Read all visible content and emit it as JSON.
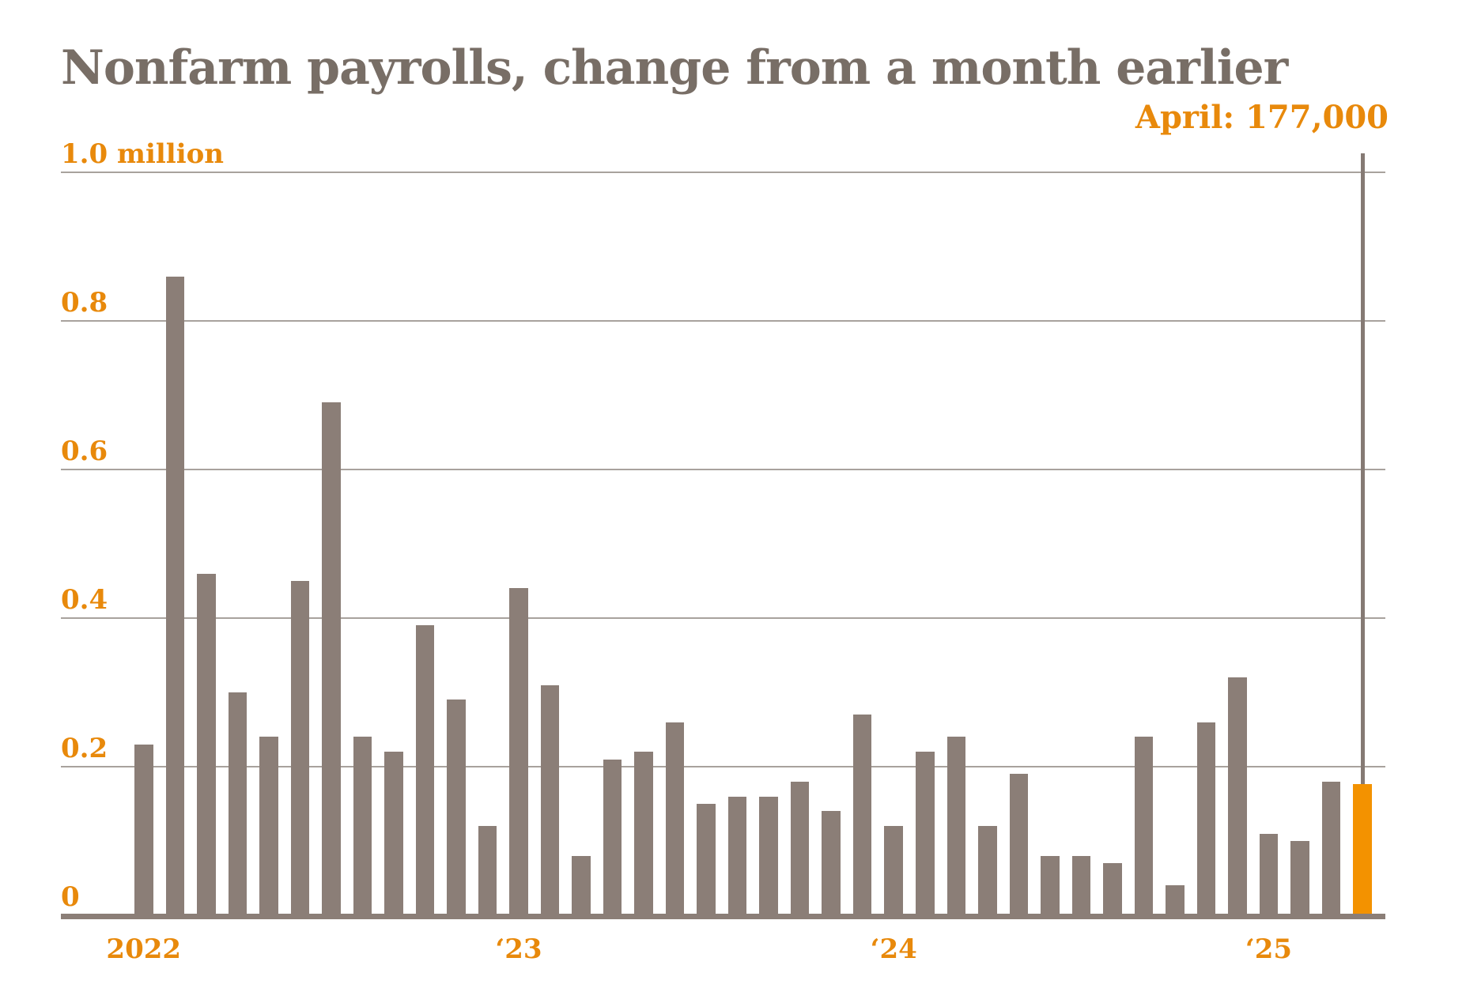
{
  "title": "Nonfarm payrolls, change from a month earlier",
  "annotation": {
    "label": "April: 177,000"
  },
  "colors": {
    "background": "#ffffff",
    "title_text": "#786e66",
    "orange_text": "#e8890b",
    "bar": "#8b7e77",
    "bar_highlight": "#f39200",
    "gridline": "#a8a29d",
    "baseline": "#8b7e77",
    "annotation_line": "#857a74"
  },
  "chart_data": {
    "type": "bar",
    "title": "Nonfarm payrolls, change from a month earlier",
    "xlabel": "",
    "ylabel": "",
    "unit": "millions of jobs",
    "ylim": [
      0,
      1.0
    ],
    "grid": true,
    "legend": "none",
    "categories": [
      "Jan 2022",
      "Feb 2022",
      "Mar 2022",
      "Apr 2022",
      "May 2022",
      "Jun 2022",
      "Jul 2022",
      "Aug 2022",
      "Sep 2022",
      "Oct 2022",
      "Nov 2022",
      "Dec 2022",
      "Jan 2023",
      "Feb 2023",
      "Mar 2023",
      "Apr 2023",
      "May 2023",
      "Jun 2023",
      "Jul 2023",
      "Aug 2023",
      "Sep 2023",
      "Oct 2023",
      "Nov 2023",
      "Dec 2023",
      "Jan 2024",
      "Feb 2024",
      "Mar 2024",
      "Apr 2024",
      "May 2024",
      "Jun 2024",
      "Jul 2024",
      "Aug 2024",
      "Sep 2024",
      "Oct 2024",
      "Nov 2024",
      "Dec 2024",
      "Jan 2025",
      "Feb 2025",
      "Mar 2025",
      "Apr 2025"
    ],
    "values": [
      0.23,
      0.86,
      0.46,
      0.3,
      0.24,
      0.45,
      0.69,
      0.24,
      0.22,
      0.39,
      0.29,
      0.12,
      0.44,
      0.31,
      0.08,
      0.21,
      0.22,
      0.26,
      0.15,
      0.16,
      0.16,
      0.18,
      0.14,
      0.27,
      0.12,
      0.22,
      0.24,
      0.12,
      0.19,
      0.08,
      0.08,
      0.07,
      0.24,
      0.04,
      0.26,
      0.32,
      0.11,
      0.1,
      0.18,
      0.177
    ],
    "highlight_index": 39,
    "highlighted_value_label": "April: 177,000",
    "y_ticks": [
      {
        "value": 1.0,
        "label": "1.0 million"
      },
      {
        "value": 0.8,
        "label": "0.8"
      },
      {
        "value": 0.6,
        "label": "0.6"
      },
      {
        "value": 0.4,
        "label": "0.4"
      },
      {
        "value": 0.2,
        "label": "0.2"
      },
      {
        "value": 0,
        "label": "0"
      }
    ],
    "x_ticks": [
      {
        "index": 0,
        "label": "2022"
      },
      {
        "index": 12,
        "label": "‘23"
      },
      {
        "index": 24,
        "label": "‘24"
      },
      {
        "index": 36,
        "label": "‘25"
      }
    ]
  }
}
